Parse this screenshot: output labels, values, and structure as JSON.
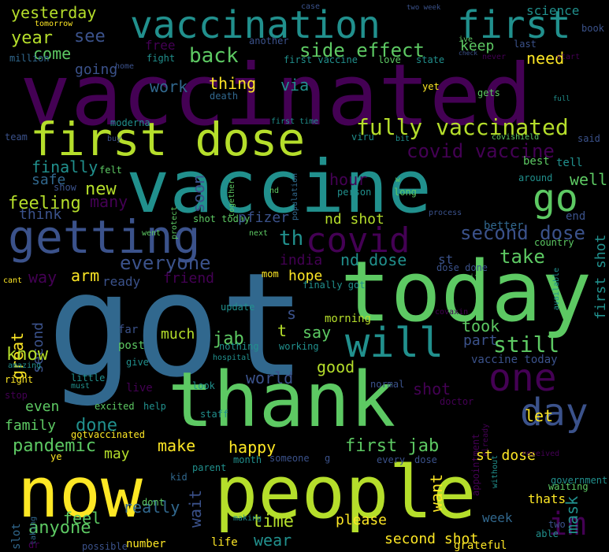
{
  "colors": {
    "background": "#000000",
    "palette": [
      "#440154",
      "#3b528b",
      "#21908d",
      "#5dc963",
      "#fde725",
      "#31688e",
      "#35b779",
      "#b5de2b"
    ]
  },
  "words": [
    "vaccinated",
    "vaccine",
    "got",
    "today",
    "thank",
    "people",
    "now",
    "first dose",
    "getting",
    "covid",
    "vaccination",
    "first",
    "will",
    "one",
    "day",
    "im",
    "go",
    "fully vaccinated",
    "side effect",
    "back",
    "second dose",
    "covid vaccine",
    "everyone",
    "take",
    "india",
    "nd dose",
    "still",
    "friend",
    "arm",
    "way",
    "yesterday",
    "tomorrow",
    "year",
    "see",
    "come",
    "going",
    "free",
    "need",
    "keep",
    "work",
    "thing",
    "soon",
    "first vaccine",
    "love",
    "state",
    "science",
    "two week",
    "case",
    "ive",
    "check",
    "book",
    "last",
    "million",
    "fight",
    "another",
    "start",
    "never",
    "home",
    "yet",
    "gets",
    "full",
    "death",
    "via",
    "moderna",
    "first time",
    "team",
    "buy",
    "viru",
    "bit",
    "covishield",
    "said",
    "finally",
    "felt",
    "best",
    "tell",
    "safe",
    "show",
    "together",
    "nd",
    "population",
    "w",
    "long",
    "around",
    "well",
    "new",
    "feeling",
    "many",
    "hour",
    "person",
    "think",
    "protect",
    "shot today",
    "pfizer",
    "nd shot",
    "th",
    "process",
    "better",
    "end",
    "went",
    "next",
    "st",
    "country",
    "dose done",
    "mom",
    "first shot",
    "ready",
    "hope",
    "finally got",
    "cant",
    "wife",
    "available",
    "great",
    "second",
    "update",
    "s",
    "morning",
    "covaxin",
    "far",
    "much",
    "jab",
    "t",
    "say",
    "took",
    "part",
    "know",
    "post",
    "nothing",
    "working",
    "amazing",
    "give",
    "hospital",
    "good",
    "vaccine today",
    "little",
    "must",
    "right",
    "live",
    "look",
    "world",
    "normal",
    "shot",
    "stop",
    "even",
    "excited",
    "help",
    "staff",
    "want",
    "doctor",
    "already",
    "appointment",
    "done",
    "family",
    "let",
    "mask",
    "gotvaccinated",
    "ye",
    "pandemic",
    "may",
    "make",
    "happy",
    "first jab",
    "st dose",
    "received",
    "parent",
    "month",
    "someone",
    "g",
    "every",
    "dose",
    "without",
    "government",
    "kid",
    "waiting",
    "thats",
    "wait",
    "really",
    "feel",
    "slot",
    "dont",
    "anyone",
    "time",
    "please",
    "week",
    "two",
    "able",
    "taking",
    "making",
    "dr",
    "possible",
    "number",
    "life",
    "wear",
    "second shot",
    "grateful",
    "vaccine shot"
  ]
}
